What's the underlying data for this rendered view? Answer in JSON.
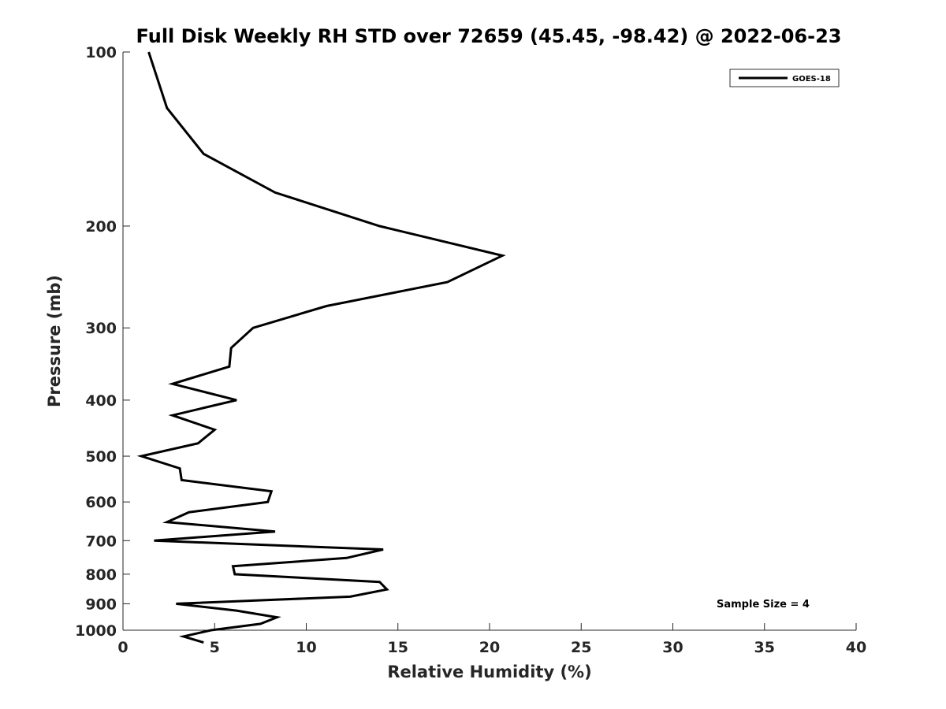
{
  "chart_data": {
    "type": "line",
    "title": "Full Disk Weekly RH STD over 72659 (45.45, -98.42) @ 2022-06-23",
    "xlabel": "Relative Humidity (%)",
    "ylabel": "Pressure (mb)",
    "xlim": [
      0,
      40
    ],
    "ylim": [
      100,
      1000
    ],
    "y_scale": "log",
    "y_reversed": true,
    "x_ticks": [
      "0",
      "5",
      "10",
      "15",
      "20",
      "25",
      "30",
      "35",
      "40"
    ],
    "y_ticks": [
      "100",
      "200",
      "300",
      "400",
      "500",
      "600",
      "700",
      "800",
      "900",
      "1000"
    ],
    "grid": false,
    "legend_position": "top-right",
    "annotation": "Sample Size = 4",
    "series": [
      {
        "name": "GOES-18",
        "color": "#000000",
        "points": [
          {
            "x": 1.4,
            "y": 100
          },
          {
            "x": 2.4,
            "y": 125
          },
          {
            "x": 4.4,
            "y": 150
          },
          {
            "x": 8.3,
            "y": 175
          },
          {
            "x": 14.0,
            "y": 200
          },
          {
            "x": 20.7,
            "y": 225
          },
          {
            "x": 17.7,
            "y": 250
          },
          {
            "x": 11.1,
            "y": 275
          },
          {
            "x": 7.1,
            "y": 300
          },
          {
            "x": 5.9,
            "y": 325
          },
          {
            "x": 5.8,
            "y": 350
          },
          {
            "x": 2.7,
            "y": 375
          },
          {
            "x": 6.2,
            "y": 400
          },
          {
            "x": 2.7,
            "y": 425
          },
          {
            "x": 5.0,
            "y": 450
          },
          {
            "x": 4.1,
            "y": 475
          },
          {
            "x": 1.0,
            "y": 500
          },
          {
            "x": 3.1,
            "y": 525
          },
          {
            "x": 3.2,
            "y": 550
          },
          {
            "x": 8.1,
            "y": 575
          },
          {
            "x": 7.9,
            "y": 600
          },
          {
            "x": 3.6,
            "y": 625
          },
          {
            "x": 2.4,
            "y": 650
          },
          {
            "x": 8.3,
            "y": 675
          },
          {
            "x": 1.7,
            "y": 700
          },
          {
            "x": 14.2,
            "y": 725
          },
          {
            "x": 12.2,
            "y": 750
          },
          {
            "x": 6.0,
            "y": 775
          },
          {
            "x": 6.1,
            "y": 800
          },
          {
            "x": 14.0,
            "y": 825
          },
          {
            "x": 14.4,
            "y": 850
          },
          {
            "x": 12.4,
            "y": 875
          },
          {
            "x": 2.9,
            "y": 900
          },
          {
            "x": 6.2,
            "y": 925
          },
          {
            "x": 8.4,
            "y": 950
          },
          {
            "x": 7.5,
            "y": 975
          },
          {
            "x": 4.8,
            "y": 1000
          },
          {
            "x": 3.3,
            "y": 1025
          },
          {
            "x": 4.4,
            "y": 1050
          }
        ]
      }
    ]
  }
}
